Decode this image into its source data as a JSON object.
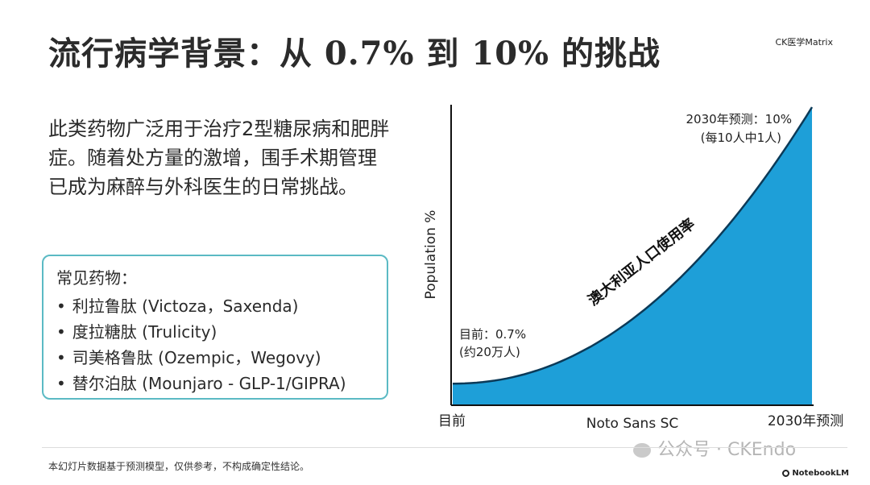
{
  "slide": {
    "title": "流行病学背景：从 0.7% 到 10% 的挑战",
    "brand": "CK医学Matrix",
    "body_text": "此类药物广泛用于治疗2型糖尿病和肥胖症。随着处方量的激增，围手术期管理已成为麻醉与外科医生的日常挑战。",
    "drug_box": {
      "title": "常见药物：",
      "items": [
        "利拉鲁肽 (Victoza，Saxenda)",
        "度拉糖肽 (Trulicity)",
        "司美格鲁肽 (Ozempic，Wegovy)",
        "替尔泊肽 (Mounjaro - GLP-1/GIPRA)"
      ]
    },
    "footnote": "本幻灯片数据基于预测模型，仅供参考，不构成确定性结论。",
    "watermark": "公众号 · CKEndo",
    "notebooklm": "NotebookLM"
  },
  "chart_data": {
    "type": "area",
    "x": [
      "目前",
      "2030年预测"
    ],
    "values": [
      0.7,
      10
    ],
    "ylabel": "Population %",
    "xlabel": "Noto Sans SC",
    "ylim": [
      0,
      10
    ],
    "curve_label": "澳大利亚人口使用率",
    "annotations": {
      "start_line1": "目前：0.7%",
      "start_line2": "(约20万人)",
      "end_line1": "2030年预测：10%",
      "end_line2": "(每10人中1人)"
    },
    "fill_color": "#1e9fd8",
    "outline_color": "#0b3a58"
  }
}
